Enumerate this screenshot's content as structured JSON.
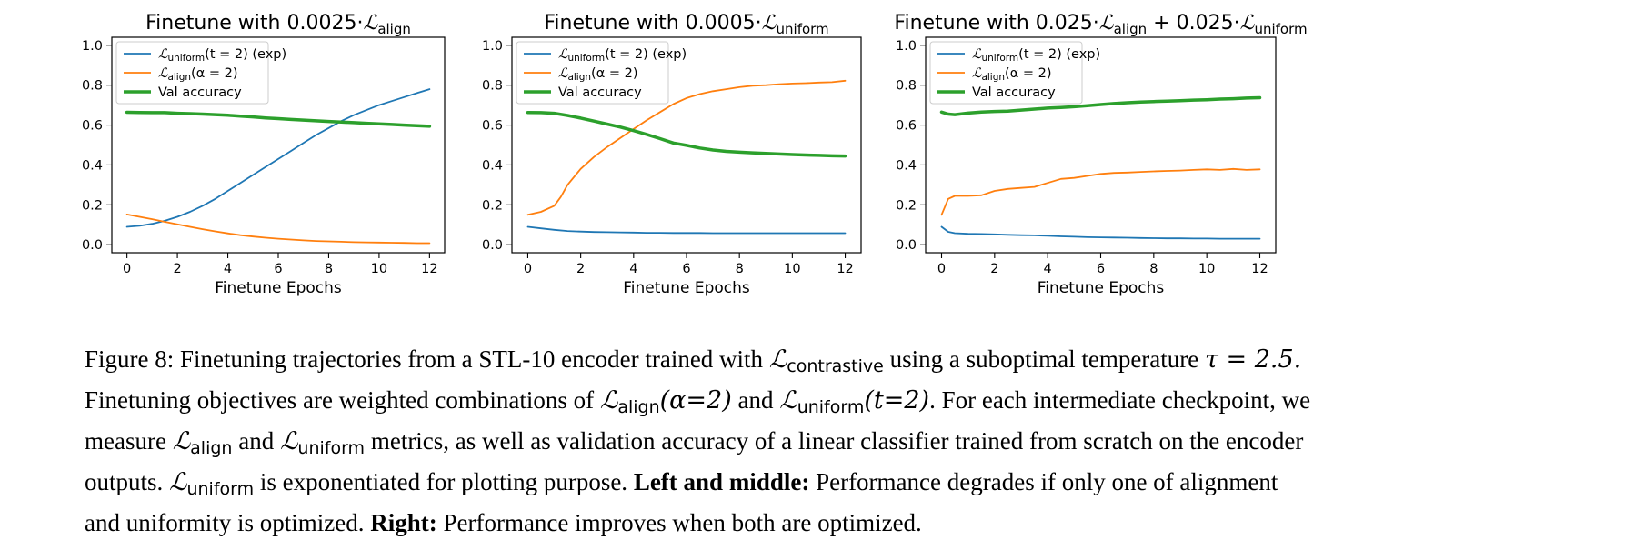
{
  "figure_label": "Figure 8:",
  "caption": {
    "s1_a": "Finetuning trajectories from a STL-10 encoder trained with ",
    "s1_sym": "ℒ",
    "s1_sub": "contrastive",
    "s1_b": " using a suboptimal temperature ",
    "s1_tau": "τ = 2.5.",
    "s2_a": "Finetuning objectives are weighted combinations of ",
    "s2_align_sub": "align",
    "s2_align_arg": "(α=2)",
    "s2_and": " and ",
    "s2_uniform_sub": "uniform",
    "s2_uniform_arg": "(t=2)",
    "s2_b": ". For each intermediate checkpoint, we",
    "s3_a": "measure ",
    "s3_and": " and ",
    "s3_b": " metrics, as well as validation accuracy of a linear classifier trained from scratch on the encoder",
    "s4_a": "outputs. ",
    "s4_b": " is exponentiated for plotting purpose. ",
    "s4_bold": "Left and middle:",
    "s4_c": " Performance degrades if only one of alignment",
    "s5_a": "and uniformity is optimized. ",
    "s5_bold": "Right:",
    "s5_b": " Performance improves when both are optimized."
  },
  "chart_data": [
    {
      "type": "line",
      "title_prefix": "Finetune with 0.0025·",
      "title_terms": [
        {
          "coef": "",
          "sym": "ℒ",
          "sub": "align"
        }
      ],
      "xlabel": "Finetune Epochs",
      "ylabel": "",
      "xlim": [
        -0.6,
        12.6
      ],
      "ylim": [
        -0.04,
        1.04
      ],
      "xticks": [
        0,
        2,
        4,
        6,
        8,
        10,
        12
      ],
      "yticks": [
        0.0,
        0.2,
        0.4,
        0.6,
        0.8,
        1.0
      ],
      "ytick_labels": [
        "0.0",
        "0.2",
        "0.4",
        "0.6",
        "0.8",
        "1.0"
      ],
      "grid": false,
      "legend_position": "upper-left",
      "series": [
        {
          "name": "uniform_exp",
          "legend_sym": "ℒ",
          "legend_sub": "uniform",
          "legend_arg": "(t = 2) (exp)",
          "color": "#1f77b4",
          "width": 1.8,
          "x": [
            0,
            0.5,
            1,
            1.5,
            2,
            2.5,
            3,
            3.5,
            4,
            4.5,
            5,
            5.5,
            6,
            6.5,
            7,
            7.5,
            8,
            8.5,
            9,
            9.5,
            10,
            10.5,
            11,
            11.5,
            12
          ],
          "y": [
            0.09,
            0.095,
            0.105,
            0.12,
            0.14,
            0.165,
            0.195,
            0.23,
            0.27,
            0.31,
            0.35,
            0.39,
            0.43,
            0.47,
            0.51,
            0.55,
            0.585,
            0.62,
            0.65,
            0.675,
            0.7,
            0.72,
            0.74,
            0.76,
            0.78
          ]
        },
        {
          "name": "align",
          "legend_sym": "ℒ",
          "legend_sub": "align",
          "legend_arg": "(α = 2)",
          "color": "#ff7f0e",
          "width": 1.8,
          "x": [
            0,
            0.5,
            1,
            1.5,
            2,
            2.5,
            3,
            3.5,
            4,
            4.5,
            5,
            5.5,
            6,
            6.5,
            7,
            7.5,
            8,
            8.5,
            9,
            9.5,
            10,
            10.5,
            11,
            11.5,
            12
          ],
          "y": [
            0.152,
            0.14,
            0.128,
            0.115,
            0.102,
            0.09,
            0.078,
            0.067,
            0.057,
            0.048,
            0.041,
            0.035,
            0.03,
            0.026,
            0.022,
            0.019,
            0.017,
            0.015,
            0.013,
            0.012,
            0.011,
            0.01,
            0.009,
            0.008,
            0.008
          ]
        },
        {
          "name": "val_accuracy",
          "legend_text": "Val accuracy",
          "color": "#2ca02c",
          "width": 3.5,
          "x": [
            0,
            0.5,
            1,
            1.5,
            2,
            2.5,
            3,
            3.5,
            4,
            4.5,
            5,
            5.5,
            6,
            6.5,
            7,
            7.5,
            8,
            8.5,
            9,
            9.5,
            10,
            10.5,
            11,
            11.5,
            12
          ],
          "y": [
            0.664,
            0.663,
            0.662,
            0.662,
            0.659,
            0.657,
            0.655,
            0.652,
            0.649,
            0.645,
            0.641,
            0.636,
            0.632,
            0.628,
            0.625,
            0.621,
            0.618,
            0.615,
            0.612,
            0.609,
            0.606,
            0.603,
            0.6,
            0.597,
            0.594
          ]
        }
      ]
    },
    {
      "type": "line",
      "title_prefix": "Finetune with 0.0005·",
      "title_terms": [
        {
          "coef": "",
          "sym": "ℒ",
          "sub": "uniform"
        }
      ],
      "xlabel": "Finetune Epochs",
      "ylabel": "",
      "xlim": [
        -0.6,
        12.6
      ],
      "ylim": [
        -0.04,
        1.04
      ],
      "xticks": [
        0,
        2,
        4,
        6,
        8,
        10,
        12
      ],
      "yticks": [
        0.0,
        0.2,
        0.4,
        0.6,
        0.8,
        1.0
      ],
      "ytick_labels": [
        "0.0",
        "0.2",
        "0.4",
        "0.6",
        "0.8",
        "1.0"
      ],
      "grid": false,
      "legend_position": "upper-left",
      "series": [
        {
          "name": "uniform_exp",
          "legend_sym": "ℒ",
          "legend_sub": "uniform",
          "legend_arg": "(t = 2) (exp)",
          "color": "#1f77b4",
          "width": 1.8,
          "x": [
            0,
            0.5,
            1,
            1.5,
            2,
            2.5,
            3,
            3.5,
            4,
            4.5,
            5,
            5.5,
            6,
            6.5,
            7,
            7.5,
            8,
            8.5,
            9,
            9.5,
            10,
            10.5,
            11,
            11.5,
            12
          ],
          "y": [
            0.09,
            0.082,
            0.075,
            0.069,
            0.066,
            0.064,
            0.063,
            0.062,
            0.061,
            0.06,
            0.06,
            0.059,
            0.059,
            0.059,
            0.058,
            0.058,
            0.058,
            0.058,
            0.058,
            0.058,
            0.058,
            0.058,
            0.058,
            0.058,
            0.058
          ]
        },
        {
          "name": "align",
          "legend_sym": "ℒ",
          "legend_sub": "align",
          "legend_arg": "(α = 2)",
          "color": "#ff7f0e",
          "width": 1.8,
          "x": [
            0,
            0.5,
            1,
            1.25,
            1.5,
            2,
            2.5,
            3,
            3.5,
            4,
            4.5,
            5,
            5.5,
            6,
            6.5,
            7,
            7.5,
            8,
            8.5,
            9,
            9.5,
            10,
            10.5,
            11,
            11.5,
            12
          ],
          "y": [
            0.15,
            0.165,
            0.195,
            0.24,
            0.3,
            0.38,
            0.44,
            0.49,
            0.535,
            0.58,
            0.625,
            0.665,
            0.705,
            0.735,
            0.755,
            0.77,
            0.78,
            0.79,
            0.797,
            0.8,
            0.805,
            0.808,
            0.81,
            0.813,
            0.815,
            0.822
          ]
        },
        {
          "name": "val_accuracy",
          "legend_text": "Val accuracy",
          "color": "#2ca02c",
          "width": 3.5,
          "x": [
            0,
            0.5,
            1,
            1.5,
            2,
            2.5,
            3,
            3.5,
            4,
            4.5,
            5,
            5.5,
            6,
            6.5,
            7,
            7.5,
            8,
            8.5,
            9,
            9.5,
            10,
            10.5,
            11,
            11.5,
            12
          ],
          "y": [
            0.663,
            0.662,
            0.659,
            0.648,
            0.635,
            0.62,
            0.605,
            0.59,
            0.572,
            0.553,
            0.532,
            0.51,
            0.498,
            0.485,
            0.475,
            0.468,
            0.464,
            0.461,
            0.458,
            0.455,
            0.452,
            0.45,
            0.448,
            0.446,
            0.445
          ]
        }
      ]
    },
    {
      "type": "line",
      "title_prefix": "Finetune with ",
      "title_terms": [
        {
          "coef": "0.025·",
          "sym": "ℒ",
          "sub": "align"
        },
        {
          "coef": " + 0.025·",
          "sym": "ℒ",
          "sub": "uniform"
        }
      ],
      "xlabel": "Finetune Epochs",
      "ylabel": "",
      "xlim": [
        -0.6,
        12.6
      ],
      "ylim": [
        -0.04,
        1.04
      ],
      "xticks": [
        0,
        2,
        4,
        6,
        8,
        10,
        12
      ],
      "yticks": [
        0.0,
        0.2,
        0.4,
        0.6,
        0.8,
        1.0
      ],
      "ytick_labels": [
        "0.0",
        "0.2",
        "0.4",
        "0.6",
        "0.8",
        "1.0"
      ],
      "grid": false,
      "legend_position": "upper-left",
      "series": [
        {
          "name": "uniform_exp",
          "legend_sym": "ℒ",
          "legend_sub": "uniform",
          "legend_arg": "(t = 2) (exp)",
          "color": "#1f77b4",
          "width": 1.8,
          "x": [
            0,
            0.25,
            0.5,
            1,
            1.5,
            2,
            2.5,
            3,
            3.5,
            4,
            4.5,
            5,
            5.5,
            6,
            6.5,
            7,
            7.5,
            8,
            8.5,
            9,
            9.5,
            10,
            10.5,
            11,
            11.5,
            12
          ],
          "y": [
            0.09,
            0.065,
            0.058,
            0.055,
            0.054,
            0.052,
            0.05,
            0.048,
            0.047,
            0.045,
            0.042,
            0.04,
            0.038,
            0.037,
            0.036,
            0.035,
            0.034,
            0.033,
            0.032,
            0.032,
            0.031,
            0.031,
            0.03,
            0.03,
            0.03,
            0.03
          ]
        },
        {
          "name": "align",
          "legend_sym": "ℒ",
          "legend_sub": "align",
          "legend_arg": "(α = 2)",
          "color": "#ff7f0e",
          "width": 1.8,
          "x": [
            0,
            0.25,
            0.5,
            1,
            1.5,
            2,
            2.5,
            3,
            3.5,
            4,
            4.5,
            5,
            5.5,
            6,
            6.5,
            7,
            7.5,
            8,
            8.5,
            9,
            9.5,
            10,
            10.5,
            11,
            11.5,
            12
          ],
          "y": [
            0.15,
            0.23,
            0.245,
            0.245,
            0.248,
            0.27,
            0.28,
            0.285,
            0.29,
            0.31,
            0.33,
            0.335,
            0.345,
            0.355,
            0.36,
            0.362,
            0.365,
            0.368,
            0.37,
            0.372,
            0.375,
            0.378,
            0.375,
            0.38,
            0.375,
            0.378
          ]
        },
        {
          "name": "val_accuracy",
          "legend_text": "Val accuracy",
          "color": "#2ca02c",
          "width": 3.5,
          "x": [
            0,
            0.25,
            0.5,
            1,
            1.5,
            2,
            2.5,
            3,
            3.5,
            4,
            4.5,
            5,
            5.5,
            6,
            6.5,
            7,
            7.5,
            8,
            8.5,
            9,
            9.5,
            10,
            10.5,
            11,
            11.5,
            12
          ],
          "y": [
            0.665,
            0.655,
            0.652,
            0.66,
            0.665,
            0.668,
            0.67,
            0.675,
            0.68,
            0.685,
            0.688,
            0.692,
            0.697,
            0.703,
            0.708,
            0.712,
            0.715,
            0.718,
            0.72,
            0.722,
            0.725,
            0.727,
            0.73,
            0.732,
            0.735,
            0.737
          ]
        }
      ]
    }
  ]
}
